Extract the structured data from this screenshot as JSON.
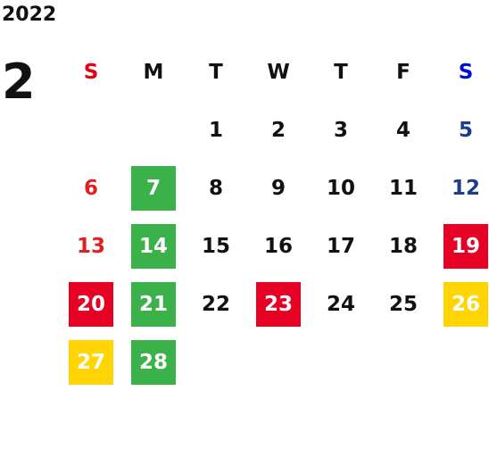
{
  "calendar": {
    "year": "2022",
    "month": "2",
    "weekdays": [
      {
        "label": "S",
        "color": "#e60012",
        "day_color": "#e02020"
      },
      {
        "label": "M",
        "color": "#111111",
        "day_color": "#111111"
      },
      {
        "label": "T",
        "color": "#111111",
        "day_color": "#111111"
      },
      {
        "label": "W",
        "color": "#111111",
        "day_color": "#111111"
      },
      {
        "label": "T",
        "color": "#111111",
        "day_color": "#111111"
      },
      {
        "label": "F",
        "color": "#111111",
        "day_color": "#111111"
      },
      {
        "label": "S",
        "color": "#0010d0",
        "day_color": "#1c3c8c"
      }
    ],
    "weeks": [
      [
        null,
        null,
        {
          "day": 1
        },
        {
          "day": 2
        },
        {
          "day": 3
        },
        {
          "day": 4
        },
        {
          "day": 5
        }
      ],
      [
        {
          "day": 6
        },
        {
          "day": 7,
          "bg": "#3bb14a"
        },
        {
          "day": 8
        },
        {
          "day": 9
        },
        {
          "day": 10
        },
        {
          "day": 11
        },
        {
          "day": 12
        }
      ],
      [
        {
          "day": 13
        },
        {
          "day": 14,
          "bg": "#3bb14a"
        },
        {
          "day": 15
        },
        {
          "day": 16
        },
        {
          "day": 17
        },
        {
          "day": 18
        },
        {
          "day": 19,
          "bg": "#e60023"
        }
      ],
      [
        {
          "day": 20,
          "bg": "#e60023"
        },
        {
          "day": 21,
          "bg": "#3bb14a"
        },
        {
          "day": 22
        },
        {
          "day": 23,
          "bg": "#e60023"
        },
        {
          "day": 24
        },
        {
          "day": 25
        },
        {
          "day": 26,
          "bg": "#ffd400"
        }
      ],
      [
        {
          "day": 27,
          "bg": "#ffd400"
        },
        {
          "day": 28,
          "bg": "#3bb14a"
        },
        null,
        null,
        null,
        null,
        null
      ]
    ]
  }
}
